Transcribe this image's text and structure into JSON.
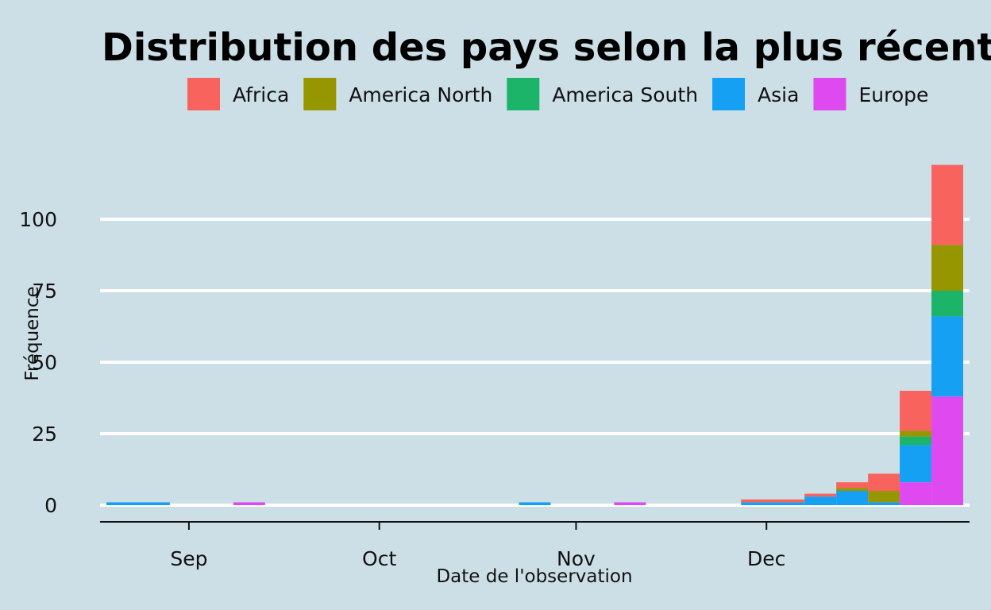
{
  "chart_data": {
    "type": "bar",
    "stacked": true,
    "title": "Distribution des pays selon la plus récente",
    "xlabel": "Date de l'observation",
    "ylabel": "Fréquence",
    "x_ticks": [
      "Sep",
      "Oct",
      "Nov",
      "Dec"
    ],
    "y_ticks": [
      "0",
      "25",
      "50",
      "75",
      "100"
    ],
    "ylim": [
      -6,
      120
    ],
    "grid": true,
    "legend_position": "top",
    "colors": {
      "Africa": "#f8635e",
      "America North": "#969600",
      "America South": "#1cb469",
      "Asia": "#16a0f4",
      "Europe": "#df4af0"
    },
    "series": [
      {
        "name": "Africa"
      },
      {
        "name": "America North"
      },
      {
        "name": "America South"
      },
      {
        "name": "Asia"
      },
      {
        "name": "Europe"
      }
    ],
    "bins": [
      {
        "start": "2020-09-02",
        "end": "2020-09-12",
        "Europe": 0,
        "Asia": 1,
        "America South": 0,
        "America North": 0,
        "Africa": 0
      },
      {
        "start": "2020-09-22",
        "end": "2020-09-27",
        "Europe": 1,
        "Asia": 0,
        "America South": 0,
        "America North": 0,
        "Africa": 0
      },
      {
        "start": "2020-11-06",
        "end": "2020-11-11",
        "Europe": 0,
        "Asia": 1,
        "America South": 0,
        "America North": 0,
        "Africa": 0
      },
      {
        "start": "2020-11-21",
        "end": "2020-11-26",
        "Europe": 1,
        "Asia": 0,
        "America South": 0,
        "America North": 0,
        "Africa": 0
      },
      {
        "start": "2020-12-11",
        "end": "2020-12-21",
        "Europe": 0,
        "Asia": 1,
        "America South": 0,
        "America North": 0,
        "Africa": 1
      },
      {
        "start": "2020-12-21",
        "end": "2020-12-26",
        "Europe": 0,
        "Asia": 3,
        "America South": 0,
        "America North": 0,
        "Africa": 1
      },
      {
        "start": "2020-12-26",
        "end": "2020-12-31",
        "Europe": 0,
        "Asia": 5,
        "America South": 0,
        "America North": 1,
        "Africa": 2
      },
      {
        "start": "2020-12-31",
        "end": "2021-01-05",
        "Europe": 0,
        "Asia": 1,
        "America South": 0,
        "America North": 4,
        "Africa": 6
      },
      {
        "start": "2021-01-05",
        "end": "2021-01-10",
        "Europe": 8,
        "Asia": 13,
        "America South": 3,
        "America North": 2,
        "Africa": 14
      },
      {
        "start": "2021-01-10",
        "end": "2021-01-15",
        "Europe": 38,
        "Asia": 28,
        "America South": 9,
        "America North": 16,
        "Africa": 28
      }
    ]
  }
}
